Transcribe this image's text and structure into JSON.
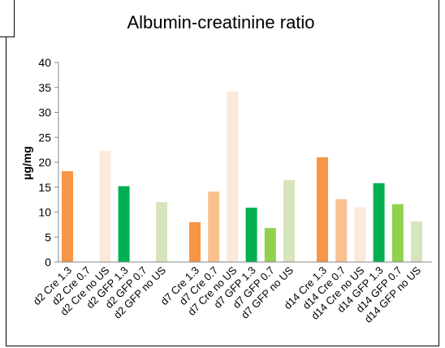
{
  "chart_data": {
    "type": "bar",
    "title": "Albumin-creatinine ratio",
    "xlabel": "",
    "ylabel": "µg/mg",
    "ylim": [
      0,
      40
    ],
    "yticks": [
      0,
      5,
      10,
      15,
      20,
      25,
      30,
      35,
      40
    ],
    "grid": false,
    "legend": "none",
    "categories": [
      "d2 Cre 1.3",
      "d2 Cre 0.7",
      "d2 Cre no US",
      "d2 GFP 1.3",
      "d2 GFP 0.7",
      "d2 GFP no US",
      "d7 Cre 1.3",
      "d7 Cre 0.7",
      "d7 Cre no US",
      "d7 GFP 1.3",
      "d7 GFP 0.7",
      "d7 GFP no US",
      "d14 Cre 1.3",
      "d14 Cre 0.7",
      "d14 Cre no US",
      "d14 GFP 1.3",
      "d14 GFP 0.7",
      "d14 GFP no US"
    ],
    "values": [
      18.2,
      0,
      22.3,
      15.2,
      0,
      12,
      8,
      14.1,
      34.2,
      10.9,
      6.8,
      16.4,
      21,
      12.6,
      11,
      15.8,
      11.6,
      8.1
    ],
    "bar_colors": [
      "#f79646",
      "#fac090",
      "#fde9d9",
      "#00b050",
      "#92d050",
      "#d7e4bc",
      "#f79646",
      "#fac090",
      "#fde9d9",
      "#00b050",
      "#92d050",
      "#d7e4bc",
      "#f79646",
      "#fac090",
      "#fde9d9",
      "#00b050",
      "#92d050",
      "#d7e4bc"
    ]
  }
}
